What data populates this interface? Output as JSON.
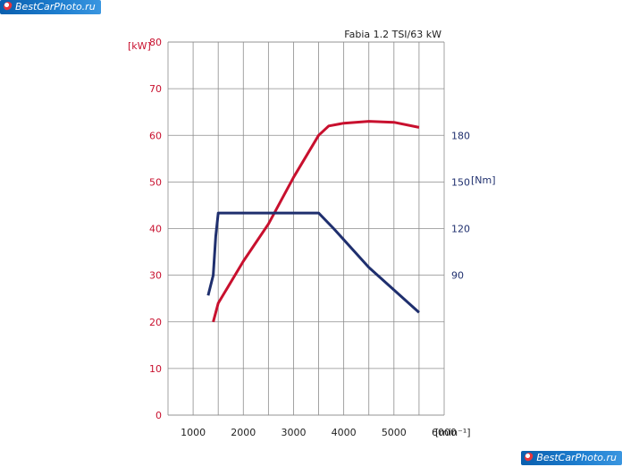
{
  "watermark": {
    "text": "BestCarPhoto.ru"
  },
  "chart_data": {
    "type": "line",
    "title": "Fabia 1.2 TSI/63 kW",
    "xlabel": "[min⁻¹]",
    "x_ticks": [
      "1000",
      "2000",
      "3000",
      "4000",
      "5000",
      "6000"
    ],
    "xlim": [
      500,
      6000
    ],
    "y_left": {
      "label": "[kW]",
      "ticks": [
        "80",
        "70",
        "60",
        "50",
        "40",
        "30",
        "20",
        "10",
        "0"
      ],
      "lim": [
        0,
        80
      ],
      "color": "#c8102e"
    },
    "y_right": {
      "label": "[Nm]",
      "ticks": [
        "180",
        "150",
        "120",
        "90"
      ],
      "lim": [
        0,
        240
      ],
      "color": "#1f2f6e"
    },
    "grid": true,
    "series": [
      {
        "axis": "left",
        "color": "#c8102e",
        "x": [
          1400,
          1500,
          2000,
          2500,
          3000,
          3500,
          3700,
          4000,
          4500,
          5000,
          5500
        ],
        "y": [
          20,
          24,
          33,
          41,
          51,
          60,
          62,
          62.6,
          63,
          62.8,
          61.7
        ]
      },
      {
        "axis": "right",
        "color": "#1f2f6e",
        "x": [
          1300,
          1400,
          1450,
          1500,
          2000,
          3000,
          3500,
          3800,
          4500,
          5500
        ],
        "y": [
          77,
          90,
          115,
          130,
          130,
          130,
          130,
          120,
          95,
          66
        ]
      }
    ]
  }
}
